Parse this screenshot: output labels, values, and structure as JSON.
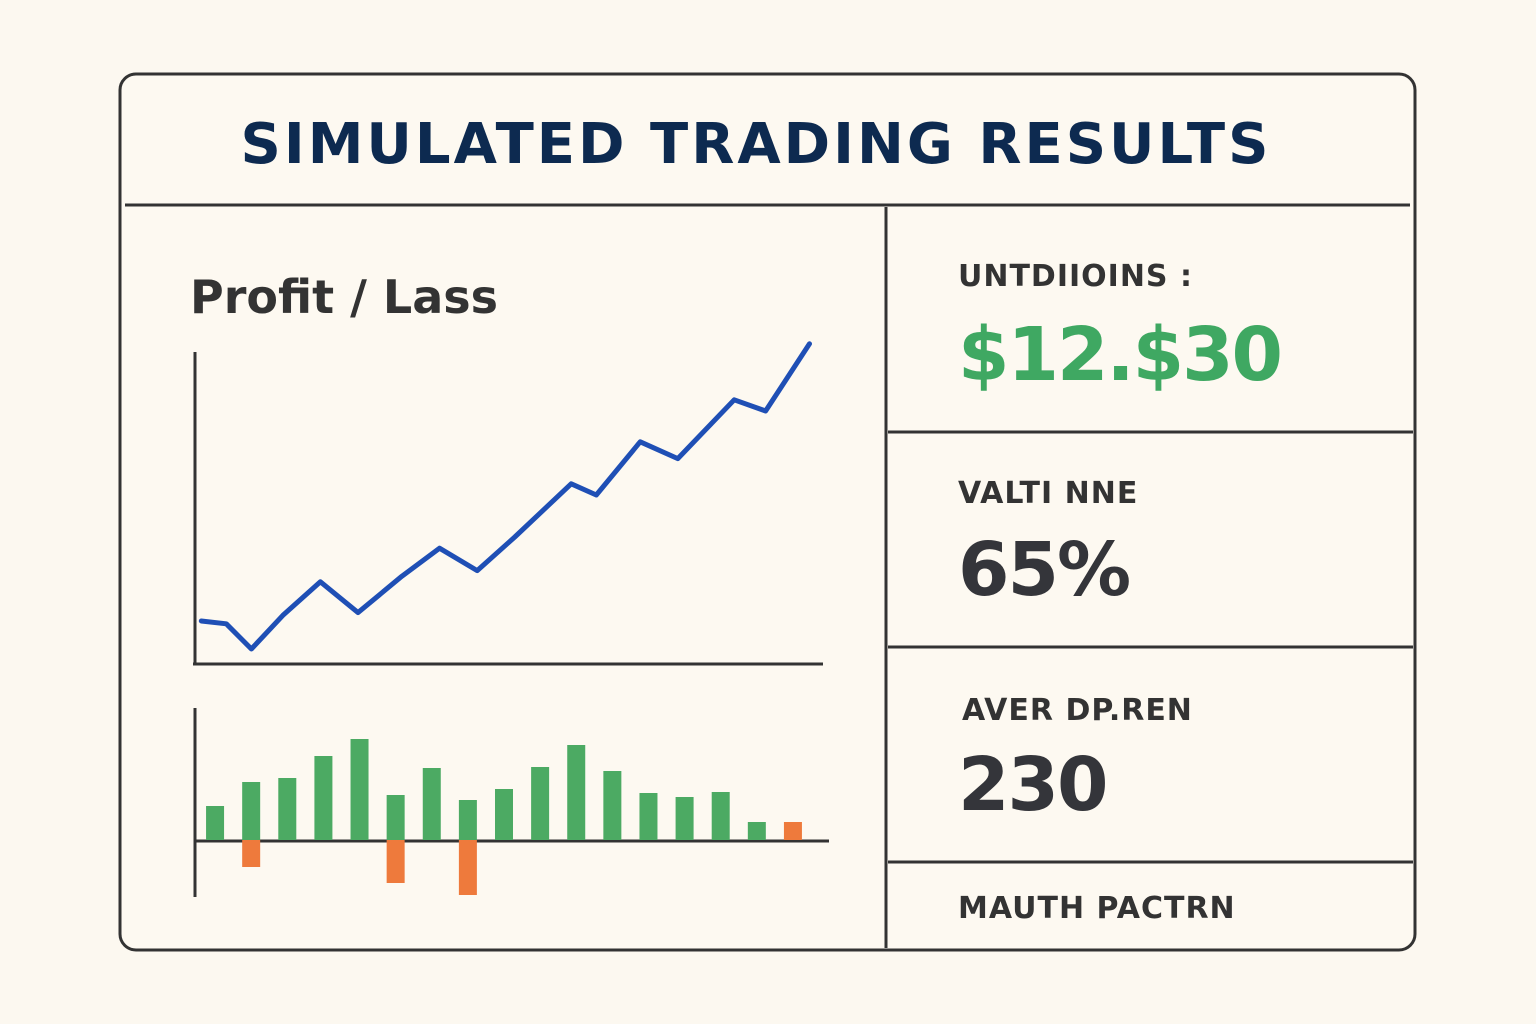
{
  "header": {
    "title": "SIMULATED TRADING RESULTS"
  },
  "chart_data": [
    {
      "type": "line",
      "title": "Profit / Lass",
      "color": "#1f4fb5",
      "x": [
        1,
        5,
        9,
        14,
        20,
        26,
        33,
        39,
        45,
        51,
        60,
        64,
        71,
        77,
        86,
        91,
        98
      ],
      "values": [
        15,
        14,
        5,
        17,
        29,
        18,
        31,
        41,
        33,
        45,
        64,
        60,
        79,
        73,
        94,
        90,
        114
      ],
      "xlim": [
        0,
        100
      ],
      "ylim": [
        0,
        110
      ]
    },
    {
      "type": "bar",
      "categories": [
        null,
        null,
        null,
        null,
        null,
        null,
        null,
        null,
        null,
        null,
        null,
        null,
        null,
        null,
        null,
        null,
        null
      ],
      "series": [
        {
          "color": "#4caa63",
          "values": [
            34,
            58,
            62,
            84,
            101,
            45,
            72,
            40,
            51,
            73,
            95,
            69,
            47,
            43,
            48,
            18,
            null
          ]
        },
        {
          "color": "#ee7a3c",
          "values": [
            null,
            -27,
            null,
            null,
            null,
            -43,
            null,
            -55,
            null,
            null,
            null,
            null,
            null,
            null,
            null,
            null,
            18
          ]
        }
      ],
      "ylim": [
        -55,
        130
      ]
    }
  ],
  "stats": [
    {
      "label": "UNTDIIOINS :",
      "value": "$12.$30",
      "color": "#3fa862"
    },
    {
      "label": "VALTI NNE",
      "value": "65%",
      "color": "#34353a"
    },
    {
      "label": "AVER DP.REN",
      "value": "230",
      "color": "#34353a"
    },
    {
      "label": "MAUTH PACTRN"
    }
  ]
}
